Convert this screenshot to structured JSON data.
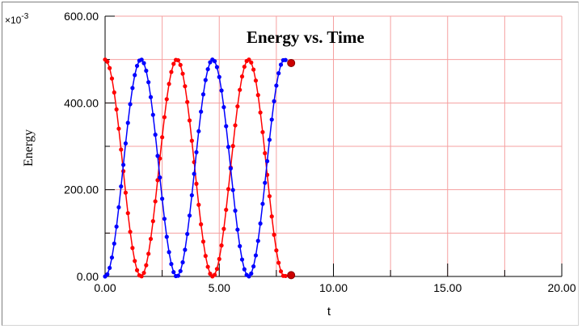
{
  "chart_data": {
    "type": "line",
    "title": "Energy vs. Time",
    "xlabel": "t",
    "ylabel": "Energy",
    "y_multiplier_label": "×10",
    "y_multiplier_exp": "-3",
    "xlim": [
      0,
      20
    ],
    "ylim": [
      0,
      600
    ],
    "x_ticks": [
      "0.00",
      "5.00",
      "10.00",
      "15.00",
      "20.00"
    ],
    "y_ticks": [
      "0.00",
      "200.00",
      "400.00",
      "600.00"
    ],
    "grid": true,
    "grid_color": "#f5a0a0",
    "t_end": 7.9,
    "sample_step": 0.1,
    "series": [
      {
        "color": "#ff0000",
        "formula": "500*cos^2(t)"
      },
      {
        "color": "#0000ff",
        "formula": "500*sin^2(t)"
      }
    ]
  }
}
